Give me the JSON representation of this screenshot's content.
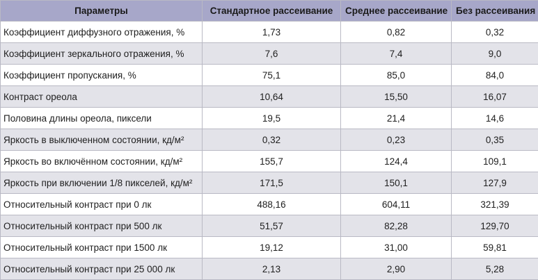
{
  "table": {
    "headers": [
      "Параметры",
      "Стандартное рассеивание",
      "Среднее рассеивание",
      "Без рассеивания"
    ],
    "rows": [
      [
        "Коэффициент диффузного отражения, %",
        "1,73",
        "0,82",
        "0,32"
      ],
      [
        "Коэффициент зеркального отражения, %",
        "7,6",
        "7,4",
        "9,0"
      ],
      [
        "Коэффициент пропускания, %",
        "75,1",
        "85,0",
        "84,0"
      ],
      [
        "Контраст ореола",
        "10,64",
        "15,50",
        "16,07"
      ],
      [
        "Половина длины ореола, пиксели",
        "19,5",
        "21,4",
        "14,6"
      ],
      [
        "Яркость в выключенном состоянии, кд/м²",
        "0,32",
        "0,23",
        "0,35"
      ],
      [
        "Яркость во включённом состоянии, кд/м²",
        "155,7",
        "124,4",
        "109,1"
      ],
      [
        "Яркость при включении 1/8 пикселей, кд/м²",
        "171,5",
        "150,1",
        "127,9"
      ],
      [
        "Относительный контраст при 0 лк",
        "488,16",
        "604,11",
        "321,39"
      ],
      [
        "Относительный контраст при 500 лк",
        "51,57",
        "82,28",
        "129,70"
      ],
      [
        "Относительный контраст при 1500 лк",
        "19,12",
        "31,00",
        "59,81"
      ],
      [
        "Относительный контраст при 25 000 лк",
        "2,13",
        "2,90",
        "5,28"
      ]
    ]
  },
  "colors": {
    "header_bg": "#a7a7c9",
    "shaded_row_bg": "#e3e3e9",
    "plain_row_bg": "#ffffff",
    "border": "#b9b9c4"
  }
}
